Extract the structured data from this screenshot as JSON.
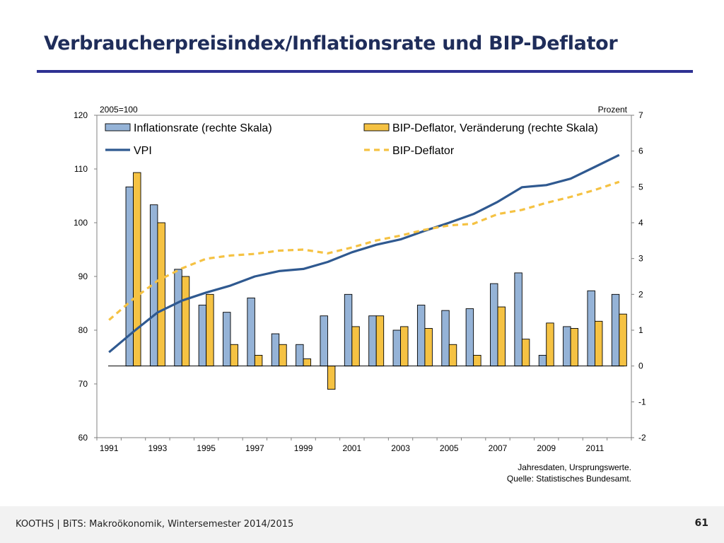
{
  "slide": {
    "title": "Verbraucherpreisindex/Inflationsrate und BIP-Deflator",
    "footer": "KOOTHS | BiTS: Makroökonomik, Wintersemester 2014/2015",
    "page_number": "61"
  },
  "chart_data": {
    "type": "bar+line",
    "left_axis": {
      "unit_label": "2005=100",
      "range": [
        60,
        120
      ],
      "ticks": [
        "60",
        "70",
        "80",
        "90",
        "100",
        "110",
        "120"
      ]
    },
    "right_axis": {
      "unit_label": "Prozent",
      "range": [
        -2,
        7
      ],
      "ticks": [
        "-2",
        "-1",
        "0",
        "1",
        "2",
        "3",
        "4",
        "5",
        "6",
        "7"
      ]
    },
    "x": [
      1991,
      1992,
      1993,
      1994,
      1995,
      1996,
      1997,
      1998,
      1999,
      2000,
      2001,
      2002,
      2003,
      2004,
      2005,
      2006,
      2007,
      2008,
      2009,
      2010,
      2011,
      2012
    ],
    "x_tick_labels": [
      "1991",
      "1993",
      "1995",
      "1997",
      "1999",
      "2001",
      "2003",
      "2005",
      "2007",
      "2009",
      "2011"
    ],
    "series": [
      {
        "name": "Inflationsrate (rechte Skala)",
        "kind": "bar",
        "axis": "right",
        "color": "#95b3d7",
        "values": [
          null,
          5.0,
          4.5,
          2.7,
          1.7,
          1.5,
          1.9,
          0.9,
          0.6,
          1.4,
          2.0,
          1.4,
          1.0,
          1.7,
          1.55,
          1.6,
          2.3,
          2.6,
          0.3,
          1.1,
          2.1,
          2.0
        ]
      },
      {
        "name": "BIP-Deflator, Veränderung (rechte Skala)",
        "kind": "bar",
        "axis": "right",
        "color": "#f5c243",
        "values": [
          null,
          5.4,
          4.0,
          2.5,
          2.0,
          0.6,
          0.3,
          0.6,
          0.2,
          -0.65,
          1.1,
          1.4,
          1.1,
          1.05,
          0.6,
          0.3,
          1.65,
          0.75,
          1.2,
          1.05,
          1.25,
          1.45
        ]
      },
      {
        "name": "VPI",
        "kind": "line",
        "axis": "left",
        "color": "#2f5990",
        "values": [
          75.9,
          79.7,
          83.3,
          85.5,
          87.0,
          88.3,
          90.0,
          91.0,
          91.4,
          92.7,
          94.5,
          95.9,
          96.9,
          98.5,
          100.0,
          101.6,
          103.9,
          106.6,
          107.0,
          108.2,
          110.4,
          112.6
        ]
      },
      {
        "name": "BIP-Deflator",
        "kind": "line",
        "axis": "left",
        "color": "#f5c243",
        "values": [
          81.9,
          85.8,
          89.2,
          91.5,
          93.3,
          93.9,
          94.2,
          94.8,
          95.0,
          94.3,
          95.4,
          96.7,
          97.6,
          98.7,
          99.5,
          99.8,
          101.6,
          102.4,
          103.7,
          104.8,
          106.1,
          107.6
        ]
      }
    ],
    "notes": [
      "Jahresdaten, Ursprungswerte.",
      "Quelle: Statistisches Bundesamt."
    ]
  }
}
